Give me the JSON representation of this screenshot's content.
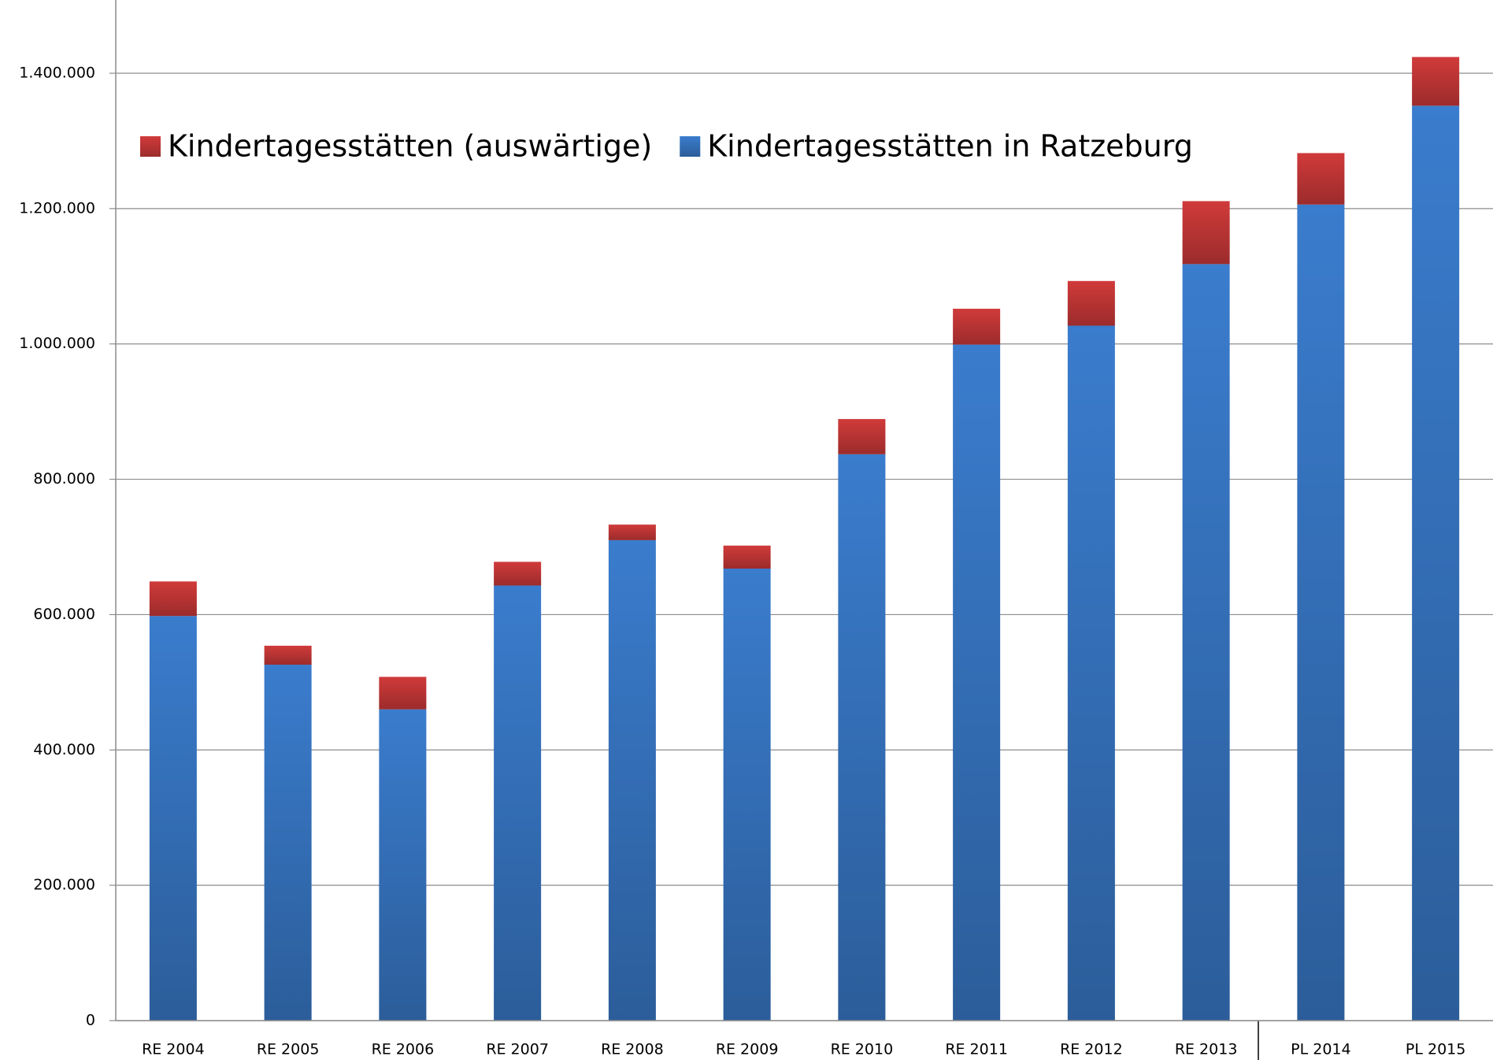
{
  "chart_data": {
    "type": "stacked_bar",
    "categories": [
      "RE 2004",
      "RE 2005",
      "RE 2006",
      "RE 2007",
      "RE 2008",
      "RE 2009",
      "RE 2010",
      "RE 2011",
      "RE 2012",
      "RE 2013",
      "PL 2014",
      "PL 2015"
    ],
    "series": [
      {
        "name": "Kindertagesstätten in Ratzeburg",
        "color": "#3a7ccd",
        "values": [
          598000,
          526000,
          460000,
          643000,
          710000,
          668000,
          837000,
          999000,
          1027000,
          1118000,
          1206000,
          1352000
        ]
      },
      {
        "name": "Kindertagesstätten (auswärtige)",
        "color": "#d03a3a",
        "values": [
          51000,
          28000,
          48000,
          35000,
          23000,
          34000,
          52000,
          53000,
          66000,
          93000,
          76000,
          72000
        ]
      }
    ],
    "ylim": [
      0,
      1500000
    ],
    "yticks": [
      0,
      {
        "value": 200000,
        "label": "200.000"
      },
      {
        "value": 400000,
        "label": "400.000"
      },
      {
        "value": 600000,
        "label": "600.000"
      },
      {
        "value": 800000,
        "label": "800.000"
      },
      {
        "value": 1000000,
        "label": "1.000.000"
      },
      {
        "value": 1200000,
        "label": "1.200.000"
      },
      {
        "value": 1400000,
        "label": "1.400.000"
      }
    ],
    "grid": true,
    "legend": "top-left"
  }
}
